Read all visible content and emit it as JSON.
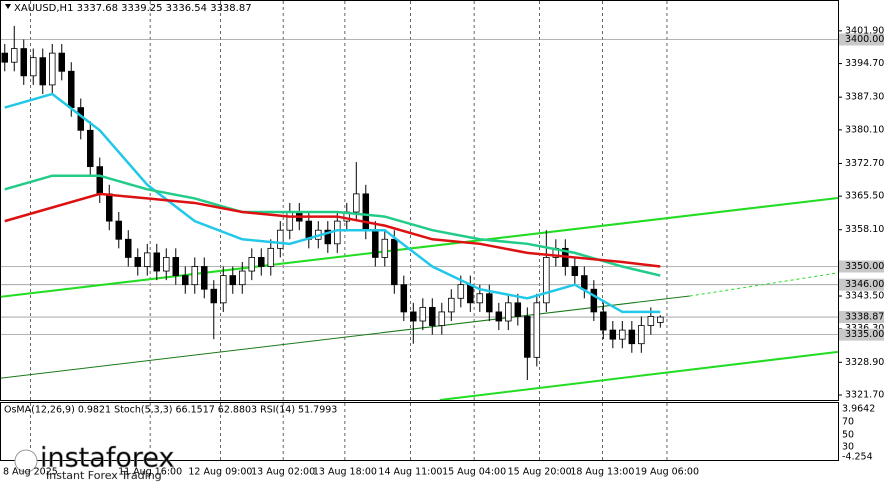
{
  "chart_data": {
    "type": "candlestick",
    "title": "XAUUSD,H1 3337.68 3339.25 3336.54 3338.87",
    "color": "#000000",
    "open": [
      3397,
      3395,
      3398,
      3392,
      3396,
      3390,
      3397,
      3393,
      3385,
      3380,
      3372,
      3366,
      3360,
      3356,
      3352,
      3350,
      3353,
      3349,
      3352,
      3348,
      3346,
      3350,
      3345,
      3342,
      3348,
      3346,
      3349,
      3352,
      3350,
      3354,
      3358,
      3362,
      3360,
      3356,
      3358,
      3355,
      3360,
      3362,
      3366,
      3358,
      3352,
      3356,
      3346,
      3340,
      3338,
      3341,
      3337,
      3340,
      3343,
      3346,
      3342,
      3344,
      3340,
      3338,
      3342,
      3339,
      3330,
      3342,
      3352,
      3354,
      3350,
      3348,
      3345,
      3340,
      3336,
      3334,
      3336,
      3333,
      3337,
      3337.68
    ],
    "high": [
      3399,
      3403,
      3400,
      3398,
      3398,
      3399,
      3399,
      3395,
      3387,
      3382,
      3374,
      3368,
      3362,
      3358,
      3354,
      3355,
      3355,
      3354,
      3354,
      3350,
      3352,
      3352,
      3347,
      3350,
      3350,
      3351,
      3354,
      3354,
      3356,
      3360,
      3364,
      3364,
      3362,
      3360,
      3360,
      3362,
      3364,
      3373,
      3368,
      3360,
      3358,
      3358,
      3348,
      3342,
      3343,
      3343,
      3342,
      3345,
      3348,
      3348,
      3346,
      3346,
      3342,
      3344,
      3344,
      3341,
      3344,
      3358,
      3356,
      3356,
      3352,
      3350,
      3347,
      3342,
      3338,
      3338,
      3338,
      3339,
      3341,
      3339.25
    ],
    "low": [
      3393,
      3393,
      3390,
      3390,
      3388,
      3388,
      3391,
      3383,
      3378,
      3370,
      3364,
      3358,
      3354,
      3350,
      3348,
      3348,
      3347,
      3347,
      3346,
      3344,
      3344,
      3343,
      3334,
      3340,
      3344,
      3344,
      3347,
      3348,
      3348,
      3352,
      3356,
      3358,
      3354,
      3354,
      3353,
      3353,
      3358,
      3360,
      3356,
      3350,
      3350,
      3344,
      3338,
      3333,
      3336,
      3335,
      3335,
      3338,
      3341,
      3340,
      3340,
      3338,
      3336,
      3336,
      3337,
      3325,
      3328,
      3340,
      3350,
      3348,
      3346,
      3343,
      3338,
      3334,
      3332,
      3332,
      3331,
      3331,
      3335,
      3336.54
    ],
    "close": [
      3395,
      3398,
      3392,
      3396,
      3390,
      3397,
      3393,
      3385,
      3380,
      3372,
      3366,
      3360,
      3356,
      3352,
      3350,
      3353,
      3349,
      3352,
      3348,
      3346,
      3350,
      3345,
      3342,
      3348,
      3346,
      3349,
      3352,
      3350,
      3354,
      3358,
      3362,
      3360,
      3356,
      3358,
      3355,
      3360,
      3362,
      3366,
      3358,
      3352,
      3356,
      3346,
      3340,
      3338,
      3341,
      3337,
      3340,
      3343,
      3346,
      3342,
      3344,
      3340,
      3338,
      3342,
      3339,
      3330,
      3342,
      3352,
      3354,
      3350,
      3348,
      3345,
      3340,
      3336,
      3334,
      3336,
      3333,
      3337,
      3339,
      3338.87
    ],
    "series": [
      {
        "color": "#22c8e8",
        "x": [
          0,
          5,
          10,
          15,
          20,
          25,
          30,
          35,
          40,
          45,
          50,
          55,
          60,
          65,
          69
        ],
        "values": [
          3385,
          3388,
          3380,
          3368,
          3360,
          3356,
          3355,
          3358,
          3358,
          3350,
          3345,
          3343,
          3346,
          3340,
          3340
        ]
      },
      {
        "color": "#22cc88",
        "x": [
          0,
          5,
          10,
          15,
          20,
          25,
          30,
          35,
          40,
          45,
          50,
          55,
          60,
          65,
          69
        ],
        "values": [
          3367,
          3370,
          3370,
          3367,
          3365,
          3362,
          3362,
          3362,
          3361,
          3358,
          3356,
          3355,
          3353,
          3350,
          3348
        ]
      },
      {
        "color": "#dd1111",
        "x": [
          0,
          5,
          10,
          15,
          20,
          25,
          30,
          35,
          40,
          45,
          50,
          55,
          60,
          65,
          69
        ],
        "values": [
          3360,
          3363,
          3366,
          3365,
          3364,
          3362,
          3361,
          3361,
          3359,
          3356,
          3355,
          3353,
          3352,
          3351,
          3350
        ]
      }
    ],
    "trendlines": [
      {
        "color": "#22dd22",
        "x": [
          -0.5,
          87.7
        ],
        "values": [
          3343.3,
          3365.1
        ]
      },
      {
        "color": "#22dd22",
        "x": [
          45.8,
          87.7
        ],
        "values": [
          3320.6,
          3331.2
        ]
      },
      {
        "color": "#1a7a1a",
        "x": [
          -0.5,
          72.1
        ],
        "values": [
          3325.4,
          3343.5
        ]
      },
      {
        "color": "#22dd22",
        "dashed": true,
        "x": [
          72.1,
          87.7
        ],
        "values": [
          3343.5,
          3348.6
        ]
      }
    ],
    "xlim": [
      -0.5,
      87.7
    ],
    "xticks": [
      {
        "value": 2.7,
        "label": "8 Aug 2025"
      },
      {
        "value": 15.3,
        "label": "11 Aug 16:00"
      },
      {
        "value": 22.7,
        "label": "12 Aug 09:00"
      },
      {
        "value": 29.3,
        "label": "13 Aug 02:00"
      },
      {
        "value": 35.8,
        "label": "13 Aug 18:00"
      },
      {
        "value": 42.7,
        "label": "14 Aug 11:00"
      },
      {
        "value": 49.4,
        "label": "15 Aug 04:00"
      },
      {
        "value": 56.3,
        "label": "15 Aug 20:00"
      },
      {
        "value": 62.9,
        "label": "18 Aug 13:00"
      },
      {
        "value": 69.7,
        "label": "19 Aug 06:00"
      }
    ],
    "ylim": [
      3320.6,
      3408.7
    ],
    "yticks": [
      {
        "value": 3401.9,
        "label": "3401.90"
      },
      {
        "value": 3394.7,
        "label": "3394.70"
      },
      {
        "value": 3387.3,
        "label": "3387.30"
      },
      {
        "value": 3380.1,
        "label": "3380.10"
      },
      {
        "value": 3372.7,
        "label": "3372.70"
      },
      {
        "value": 3365.5,
        "label": "3365.50"
      },
      {
        "value": 3358.1,
        "label": "3358.10"
      },
      {
        "value": 3343.5,
        "label": "3343.50"
      },
      {
        "value": 3336.3,
        "label": "3336.30"
      },
      {
        "value": 3328.9,
        "label": "3328.90"
      },
      {
        "value": 3321.7,
        "label": "3321.70"
      }
    ],
    "levels": [
      {
        "value": 3400,
        "label": "3400.00"
      },
      {
        "value": 3350,
        "label": "3350.00"
      },
      {
        "value": 3346,
        "label": "3346.00"
      },
      {
        "value": 3338.87,
        "label": "3338.87"
      },
      {
        "value": 3335,
        "label": "3335.00"
      }
    ],
    "grid": true
  },
  "indicator_panel": {
    "label": "OsMA(12,26,9) 0.9821  Stoch(5,3,3) 66.1517 62.8803  RSI(14) 51.7993",
    "axis_labels": [
      "3.9642",
      "70",
      "50",
      "30",
      "-4.254"
    ]
  },
  "branding": {
    "name": "instaforex",
    "tagline": "Instant Forex Trading"
  }
}
